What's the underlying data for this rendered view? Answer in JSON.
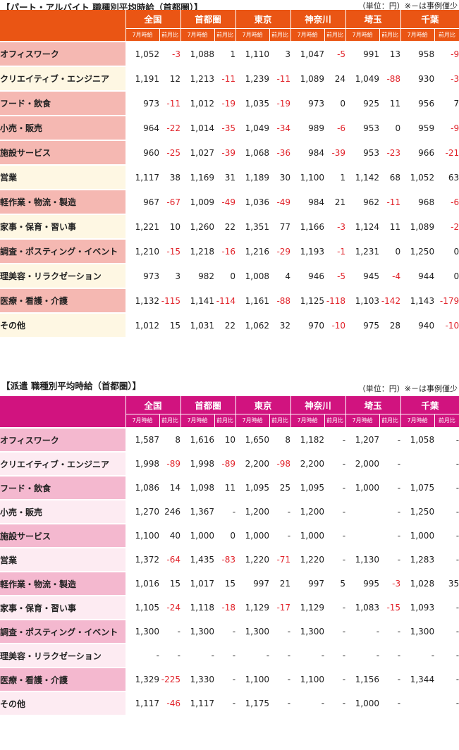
{
  "colors": {
    "section1_header": "#ea5514",
    "section1_row_shaded": "#f5b8b2",
    "section1_row_plain": "#fef7e3",
    "section2_header": "#d1137f",
    "section2_row_shaded": "#f4b8cf",
    "section2_row_plain": "#fdebf2",
    "negative": "#e1232a"
  },
  "sections": [
    {
      "title": "【パート・アルバイト 職種別平均時給（首都圏）】",
      "note": "（単位：円）※－は事例僅少",
      "regions": [
        "全国",
        "首都圏",
        "東京",
        "神奈川",
        "埼玉",
        "千葉"
      ],
      "sub_headers": [
        "7月時給",
        "前月比"
      ],
      "rows": [
        {
          "label": "オフィスワーク",
          "values": [
            "1,052",
            "-3",
            "1,088",
            "1",
            "1,110",
            "3",
            "1,047",
            "-5",
            "991",
            "13",
            "958",
            "-9"
          ]
        },
        {
          "label": "クリエイティブ・エンジニア",
          "values": [
            "1,191",
            "12",
            "1,213",
            "-11",
            "1,239",
            "-11",
            "1,089",
            "24",
            "1,049",
            "-88",
            "930",
            "-3"
          ]
        },
        {
          "label": "フード・飲食",
          "values": [
            "973",
            "-11",
            "1,012",
            "-19",
            "1,035",
            "-19",
            "973",
            "0",
            "925",
            "11",
            "956",
            "7"
          ]
        },
        {
          "label": "小売・販売",
          "values": [
            "964",
            "-22",
            "1,014",
            "-35",
            "1,049",
            "-34",
            "989",
            "-6",
            "953",
            "0",
            "959",
            "-9"
          ]
        },
        {
          "label": "施設サービス",
          "values": [
            "960",
            "-25",
            "1,027",
            "-39",
            "1,068",
            "-36",
            "984",
            "-39",
            "953",
            "-23",
            "966",
            "-21"
          ]
        },
        {
          "label": "営業",
          "values": [
            "1,117",
            "38",
            "1,169",
            "31",
            "1,189",
            "30",
            "1,100",
            "1",
            "1,142",
            "68",
            "1,052",
            "63"
          ]
        },
        {
          "label": "軽作業・物流・製造",
          "values": [
            "967",
            "-67",
            "1,009",
            "-49",
            "1,036",
            "-49",
            "984",
            "21",
            "962",
            "-11",
            "968",
            "-6"
          ]
        },
        {
          "label": "家事・保育・習い事",
          "values": [
            "1,221",
            "10",
            "1,260",
            "22",
            "1,351",
            "77",
            "1,166",
            "-3",
            "1,124",
            "11",
            "1,089",
            "-2"
          ]
        },
        {
          "label": "調査・ポスティング・イベント",
          "values": [
            "1,210",
            "-15",
            "1,218",
            "-16",
            "1,216",
            "-29",
            "1,193",
            "-1",
            "1,231",
            "0",
            "1,250",
            "0"
          ]
        },
        {
          "label": "理美容・リラクゼーション",
          "values": [
            "973",
            "3",
            "982",
            "0",
            "1,008",
            "4",
            "946",
            "-5",
            "945",
            "-4",
            "944",
            "0"
          ]
        },
        {
          "label": "医療・看護・介護",
          "values": [
            "1,132",
            "-115",
            "1,141",
            "-114",
            "1,161",
            "-88",
            "1,125",
            "-118",
            "1,103",
            "-142",
            "1,143",
            "-179"
          ]
        },
        {
          "label": "その他",
          "values": [
            "1,012",
            "15",
            "1,031",
            "22",
            "1,062",
            "32",
            "970",
            "-10",
            "975",
            "28",
            "940",
            "-10"
          ]
        }
      ]
    },
    {
      "title": "【派遣 職種別平均時給（首都圏）】",
      "note": "（単位：円）※－は事例僅少",
      "regions": [
        "全国",
        "首都圏",
        "東京",
        "神奈川",
        "埼玉",
        "千葉"
      ],
      "sub_headers": [
        "7月時給",
        "前月比"
      ],
      "rows": [
        {
          "label": "オフィスワーク",
          "values": [
            "1,587",
            "8",
            "1,616",
            "10",
            "1,650",
            "8",
            "1,182",
            "-",
            "1,207",
            "-",
            "1,058",
            "-"
          ]
        },
        {
          "label": "クリエイティブ・エンジニア",
          "values": [
            "1,998",
            "-89",
            "1,998",
            "-89",
            "2,200",
            "-98",
            "2,200",
            "-",
            "2,000",
            "-",
            "",
            "-"
          ]
        },
        {
          "label": "フード・飲食",
          "values": [
            "1,086",
            "14",
            "1,098",
            "11",
            "1,095",
            "25",
            "1,095",
            "-",
            "1,000",
            "-",
            "1,075",
            "-"
          ]
        },
        {
          "label": "小売・販売",
          "values": [
            "1,270",
            "246",
            "1,367",
            "-",
            "1,200",
            "-",
            "1,200",
            "-",
            "",
            "-",
            "1,250",
            "-"
          ]
        },
        {
          "label": "施設サービス",
          "values": [
            "1,100",
            "40",
            "1,000",
            "0",
            "1,000",
            "-",
            "1,000",
            "-",
            "",
            "-",
            "1,000",
            "-"
          ]
        },
        {
          "label": "営業",
          "values": [
            "1,372",
            "-64",
            "1,435",
            "-83",
            "1,220",
            "-71",
            "1,220",
            "-",
            "1,130",
            "-",
            "1,283",
            "-"
          ]
        },
        {
          "label": "軽作業・物流・製造",
          "values": [
            "1,016",
            "15",
            "1,017",
            "15",
            "997",
            "21",
            "997",
            "5",
            "995",
            "-3",
            "1,028",
            "35"
          ]
        },
        {
          "label": "家事・保育・習い事",
          "values": [
            "1,105",
            "-24",
            "1,118",
            "-18",
            "1,129",
            "-17",
            "1,129",
            "-",
            "1,083",
            "-15",
            "1,093",
            "-"
          ]
        },
        {
          "label": "調査・ポスティング・イベント",
          "values": [
            "1,300",
            "-",
            "1,300",
            "-",
            "1,300",
            "-",
            "1,300",
            "-",
            "-",
            "-",
            "1,300",
            "-"
          ]
        },
        {
          "label": "理美容・リラクゼーション",
          "values": [
            "-",
            "-",
            "-",
            "-",
            "-",
            "-",
            "-",
            "-",
            "-",
            "-",
            "-",
            "-"
          ]
        },
        {
          "label": "医療・看護・介護",
          "values": [
            "1,329",
            "-225",
            "1,330",
            "-",
            "1,100",
            "-",
            "1,100",
            "-",
            "1,156",
            "-",
            "1,344",
            "-"
          ]
        },
        {
          "label": "その他",
          "values": [
            "1,117",
            "-46",
            "1,117",
            "-",
            "1,175",
            "-",
            "-",
            "-",
            "1,000",
            "-",
            "",
            "-"
          ]
        }
      ]
    }
  ]
}
